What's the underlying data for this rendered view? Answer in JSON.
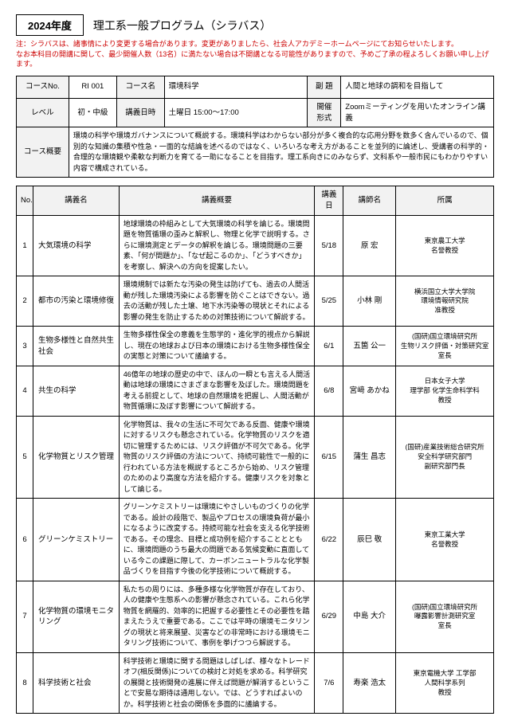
{
  "header": {
    "year": "2024年度",
    "program_title": "理工系一般プログラム（シラバス）",
    "note": "注：シラバスは、諸事情により変更する場合があります。変更がありましたら、社会人アカデミーホームページにてお知らせいたします。\nなお本科目の開講に関して、最少開催人数（13名）に満たない場合は不開講となる可能性がありますので、予めご了承の程よろしくお願い申し上げます。"
  },
  "info": {
    "course_no_label": "コースNo.",
    "course_no": "RI 001",
    "course_name_label": "コース名",
    "course_name": "環境科学",
    "subtitle_label": "副 題",
    "subtitle": "人間と地球の調和を目指して",
    "level_label": "レベル",
    "level": "初・中級",
    "schedule_label": "講義日時",
    "schedule": "土曜日  15:00～17:00",
    "format_label": "開催\n形式",
    "format": "Zoomミーティングを用いたオンライン講義",
    "overview_label": "コース概要",
    "overview": "環境の科学や環境ガバナンスについて概説する。環境科学はわからない部分が多く複合的な応用分野を数多く含んでいるので、個別的な知識の集積や性急・一面的な結論を述べるのではなく、いろいろな考え方があることを並列的に論述し、受講者の科学的・合理的な環境観や柔軟な判断力を育てる一助になることを目指す。理工系向きにのみならず、文科系や一般市民にもわかりやすい内容で構成されている。"
  },
  "columns": {
    "no": "No.",
    "lecture_name": "講義名",
    "summary": "講義概要",
    "date": "講義日",
    "instructor": "講師名",
    "affiliation": "所属"
  },
  "lectures": [
    {
      "no": "1",
      "name": "大気環境の科学",
      "summary": "地球環境の枠組みとして大気環境の科学を論じる。環境問題を物質循環の歪みと解釈し、物理と化学で説明する。さらに環境測定とデータの解釈を論じる。環境問題の三要素、「何が問題か」、「なぜ起こるのか」、「どうすべきか」を考察し、解決への方向を提案したい。",
      "date": "5/18",
      "instructor": "原 宏",
      "affiliation": "東京農工大学\n名誉教授"
    },
    {
      "no": "2",
      "name": "都市の汚染と環境修復",
      "summary": "環境規制では新たな汚染の発生は防げても、過去の人間活動が残した環境汚染による影響を防ぐことはできない。過去の活動が残した土壌、地下水汚染等の現状とそれによる影響の発生を防止するための対策技術について解説する。",
      "date": "5/25",
      "instructor": "小林 剛",
      "affiliation": "横浜国立大学大学院\n環境情報研究院\n准教授"
    },
    {
      "no": "3",
      "name": "生物多様性と自然共生社会",
      "summary": "生物多様性保全の意義を生態学的・進化学的視点から解説し、現在の地球および日本の環境における生物多様性保全の実態と対策について議論する。",
      "date": "6/1",
      "instructor": "五箇 公一",
      "affiliation": "(国研)国立環境研究所\n生物リスク評価・対策研究室\n室長"
    },
    {
      "no": "4",
      "name": "共生の科学",
      "summary": "46億年の地球の歴史の中で、ほんの一瞬とも言える人間活動は地球の環境にさまざまな影響を及ぼした。環境問題を考える前提として、地球の自然環境を把握し、人間活動が物質循環に及ぼす影響について解説する。",
      "date": "6/8",
      "instructor": "宮﨑 あかね",
      "affiliation": "日本女子大学\n理学部 化学生命科学科\n教授"
    },
    {
      "no": "5",
      "name": "化学物質とリスク管理",
      "summary": "化学物質は、我々の生活に不可欠である反面、健康や環境に対するリスクも懸念されている。化学物質のリスクを適切に管理するためには、リスク評価が不可欠である。化学物質のリスク評価の方法について、持続可能性で一般的に行われている方法を概説するところから始め、リスク管理のためのより高度な方法を紹介する。健康リスクを対象として論じる。",
      "date": "6/15",
      "instructor": "蒲生 昌志",
      "affiliation": "(国研)産業技術総合研究所\n安全科学研究部門\n副研究部門長"
    },
    {
      "no": "6",
      "name": "グリーンケミストリー",
      "summary": "グリーンケミストリーは環境にやさしいものづくりの化学である。設計の段階で、製品やプロセスの環境負荷が最小になるように改変する。持続可能な社会を支える化学技術である。その理念、目標と成功例を紹介することとともに、環境問題のうち最大の問題である気候変動に直面している今この課題に際して、カーボンニュートラルな化学製品づくりを目指す今後の化学技術について概説する。",
      "date": "6/22",
      "instructor": "辰巳 敬",
      "affiliation": "東京工業大学\n名誉教授"
    },
    {
      "no": "7",
      "name": "化学物質の環境モニタリング",
      "summary": "私たちの周りには、多種多様な化学物質が存在しており、人の健康や生態系への影響が懸念されている。これら化学物質を網羅的、効率的に把握する必要性とその必要性を踏まえたうえで重要である。ここでは平時の環境モニタリングの現状と将来展望、災害などの非常時における環境モニタリング技術について、事例を挙げつつら解説する。",
      "date": "6/29",
      "instructor": "中島 大介",
      "affiliation": "(国研)国立環境研究所\n曝露影響計測研究室\n室長"
    },
    {
      "no": "8",
      "name": "科学技術と社会",
      "summary": "科学技術と環境に関する問題はしばしば、様々なトレードオフ(相反関係)についての検討と対処を求める。科学研究の展開と技術開発の進展に伴えば問題が解消するということで安易な期待は通用しない。では、どうすればよいのか。科学技術と社会の関係を多面的に議論する。",
      "date": "7/6",
      "instructor": "寿楽 浩太",
      "affiliation": "東京電機大学 工学部\n人間科学系列\n教授"
    }
  ]
}
